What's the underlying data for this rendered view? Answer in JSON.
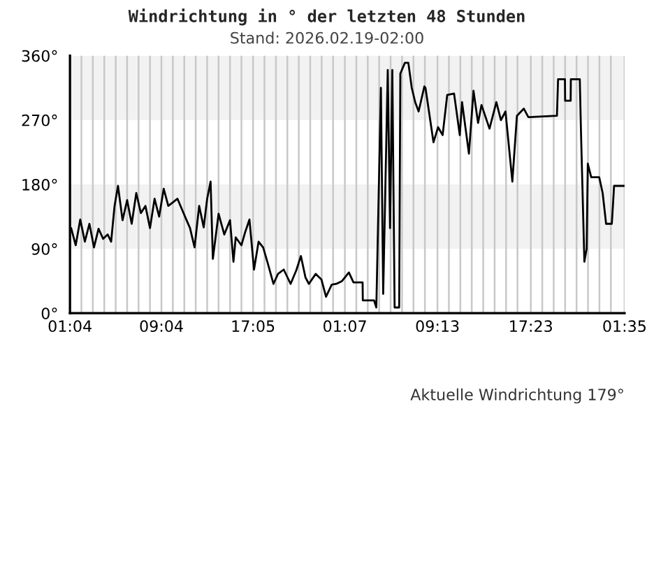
{
  "chart_data": {
    "type": "line",
    "title": "Windrichtung in ° der letzten 48 Stunden",
    "subtitle": "Stand: 2026.02.19-02:00",
    "annotations": [
      "Aktuelle Windrichtung 179°"
    ],
    "series": [
      {
        "color": "#000000",
        "x": [
          "2026-02-17T01:10",
          "2026-02-17T01:34",
          "2026-02-17T01:58",
          "2026-02-17T02:22",
          "2026-02-17T02:46",
          "2026-02-17T03:10",
          "2026-02-17T03:34",
          "2026-02-17T03:58",
          "2026-02-17T04:22",
          "2026-02-17T04:40",
          "2026-02-17T04:58",
          "2026-02-17T05:16",
          "2026-02-17T05:40",
          "2026-02-17T06:04",
          "2026-02-17T06:28",
          "2026-02-17T06:52",
          "2026-02-17T07:16",
          "2026-02-17T07:40",
          "2026-02-17T08:04",
          "2026-02-17T08:28",
          "2026-02-17T08:52",
          "2026-02-17T09:16",
          "2026-02-17T09:40",
          "2026-02-17T10:04",
          "2026-02-17T10:28",
          "2026-02-17T10:52",
          "2026-02-17T11:16",
          "2026-02-17T11:34",
          "2026-02-17T11:58",
          "2026-02-17T12:22",
          "2026-02-17T12:46",
          "2026-02-17T13:04",
          "2026-02-17T13:22",
          "2026-02-17T13:34",
          "2026-02-17T14:04",
          "2026-02-17T14:34",
          "2026-02-17T15:04",
          "2026-02-17T15:22",
          "2026-02-17T15:34",
          "2026-02-17T16:04",
          "2026-02-17T16:22",
          "2026-02-17T16:46",
          "2026-02-17T17:10",
          "2026-02-17T17:34",
          "2026-02-17T17:58",
          "2026-02-17T18:22",
          "2026-02-17T18:52",
          "2026-02-17T19:16",
          "2026-02-17T19:46",
          "2026-02-17T20:22",
          "2026-02-17T20:52",
          "2026-02-17T21:16",
          "2026-02-17T21:40",
          "2026-02-17T21:58",
          "2026-02-17T22:34",
          "2026-02-17T23:04",
          "2026-02-17T23:28",
          "2026-02-17T23:58",
          "2026-02-18T00:22",
          "2026-02-18T00:52",
          "2026-02-18T01:28",
          "2026-02-18T01:52",
          "2026-02-18T02:40",
          "2026-02-18T02:41",
          "2026-02-18T03:40",
          "2026-02-18T03:52",
          "2026-02-18T04:16",
          "2026-02-18T04:28",
          "2026-02-18T04:52",
          "2026-02-18T05:04",
          "2026-02-18T05:16",
          "2026-02-18T05:28",
          "2026-02-18T05:52",
          "2026-02-18T05:58",
          "2026-02-18T06:22",
          "2026-02-18T06:40",
          "2026-02-18T06:58",
          "2026-02-18T07:16",
          "2026-02-18T07:34",
          "2026-02-18T08:04",
          "2026-02-18T08:10",
          "2026-02-18T08:52",
          "2026-02-18T09:16",
          "2026-02-18T09:40",
          "2026-02-18T10:04",
          "2026-02-18T10:40",
          "2026-02-18T11:10",
          "2026-02-18T11:22",
          "2026-02-18T11:58",
          "2026-02-18T12:22",
          "2026-02-18T12:46",
          "2026-02-18T13:04",
          "2026-02-18T13:46",
          "2026-02-18T14:22",
          "2026-02-18T14:46",
          "2026-02-18T15:10",
          "2026-02-18T15:46",
          "2026-02-18T16:10",
          "2026-02-18T16:46",
          "2026-02-18T17:10",
          "2026-02-18T19:40",
          "2026-02-18T19:46",
          "2026-02-18T20:22",
          "2026-02-18T20:23",
          "2026-02-18T20:52",
          "2026-02-18T20:53",
          "2026-02-18T21:40",
          "2026-02-18T21:46",
          "2026-02-18T22:04",
          "2026-02-18T22:16",
          "2026-02-18T22:22",
          "2026-02-18T22:40",
          "2026-02-18T23:22",
          "2026-02-18T23:40",
          "2026-02-18T23:58",
          "2026-02-19T00:28",
          "2026-02-19T00:34",
          "2026-02-19T00:40",
          "2026-02-19T01:35"
        ],
        "values": [
          119,
          95,
          131,
          100,
          125,
          92,
          118,
          104,
          110,
          100,
          150,
          178,
          130,
          158,
          125,
          168,
          140,
          150,
          119,
          160,
          135,
          174,
          150,
          155,
          160,
          145,
          130,
          119,
          92,
          150,
          120,
          160,
          184,
          76,
          139,
          110,
          130,
          72,
          106,
          95,
          112,
          131,
          61,
          100,
          92,
          70,
          41,
          55,
          61,
          41,
          60,
          80,
          50,
          41,
          55,
          47,
          23,
          40,
          41,
          45,
          57,
          43,
          43,
          18,
          18,
          8,
          315,
          27,
          340,
          119,
          340,
          8,
          8,
          335,
          350,
          350,
          315,
          295,
          282,
          317,
          315,
          239,
          260,
          249,
          305,
          307,
          249,
          295,
          223,
          311,
          266,
          291,
          258,
          295,
          270,
          282,
          184,
          276,
          286,
          274,
          276,
          327,
          327,
          297,
          297,
          327,
          327,
          256,
          72,
          90,
          209,
          190,
          190,
          168,
          125,
          125,
          151,
          178,
          178
        ]
      }
    ],
    "xlim": [
      "2026-02-17T01:04",
      "2026-02-19T01:35"
    ],
    "xticks": [
      {
        "value": "2026-02-17T01:04",
        "label": "01:04"
      },
      {
        "value": "2026-02-17T02:04",
        "label": null
      },
      {
        "value": "2026-02-17T03:04",
        "label": null
      },
      {
        "value": "2026-02-17T04:04",
        "label": null
      },
      {
        "value": "2026-02-17T05:04",
        "label": null
      },
      {
        "value": "2026-02-17T06:04",
        "label": null
      },
      {
        "value": "2026-02-17T07:04",
        "label": null
      },
      {
        "value": "2026-02-17T08:04",
        "label": null
      },
      {
        "value": "2026-02-17T09:04",
        "label": "09:04"
      },
      {
        "value": "2026-02-17T10:04",
        "label": null
      },
      {
        "value": "2026-02-17T11:04",
        "label": null
      },
      {
        "value": "2026-02-17T12:04",
        "label": null
      },
      {
        "value": "2026-02-17T13:04",
        "label": null
      },
      {
        "value": "2026-02-17T14:04",
        "label": null
      },
      {
        "value": "2026-02-17T15:04",
        "label": null
      },
      {
        "value": "2026-02-17T16:04",
        "label": null
      },
      {
        "value": "2026-02-17T17:05",
        "label": "17:05"
      },
      {
        "value": "2026-02-17T18:05",
        "label": null
      },
      {
        "value": "2026-02-17T19:05",
        "label": null
      },
      {
        "value": "2026-02-17T20:05",
        "label": null
      },
      {
        "value": "2026-02-17T21:05",
        "label": null
      },
      {
        "value": "2026-02-17T22:05",
        "label": null
      },
      {
        "value": "2026-02-17T23:05",
        "label": null
      },
      {
        "value": "2026-02-18T00:05",
        "label": null
      },
      {
        "value": "2026-02-18T01:07",
        "label": "01:07"
      },
      {
        "value": "2026-02-18T02:07",
        "label": null
      },
      {
        "value": "2026-02-18T03:07",
        "label": null
      },
      {
        "value": "2026-02-18T04:07",
        "label": null
      },
      {
        "value": "2026-02-18T05:07",
        "label": null
      },
      {
        "value": "2026-02-18T06:07",
        "label": null
      },
      {
        "value": "2026-02-18T07:07",
        "label": null
      },
      {
        "value": "2026-02-18T08:07",
        "label": null
      },
      {
        "value": "2026-02-18T09:13",
        "label": "09:13"
      },
      {
        "value": "2026-02-18T10:13",
        "label": null
      },
      {
        "value": "2026-02-18T11:13",
        "label": null
      },
      {
        "value": "2026-02-18T12:13",
        "label": null
      },
      {
        "value": "2026-02-18T13:13",
        "label": null
      },
      {
        "value": "2026-02-18T14:13",
        "label": null
      },
      {
        "value": "2026-02-18T15:13",
        "label": null
      },
      {
        "value": "2026-02-18T16:13",
        "label": null
      },
      {
        "value": "2026-02-18T17:23",
        "label": "17:23"
      },
      {
        "value": "2026-02-18T18:23",
        "label": null
      },
      {
        "value": "2026-02-18T19:23",
        "label": null
      },
      {
        "value": "2026-02-18T20:23",
        "label": null
      },
      {
        "value": "2026-02-18T21:23",
        "label": null
      },
      {
        "value": "2026-02-18T22:23",
        "label": null
      },
      {
        "value": "2026-02-18T23:23",
        "label": null
      },
      {
        "value": "2026-02-19T00:23",
        "label": null
      },
      {
        "value": "2026-02-19T01:35",
        "label": "01:35"
      }
    ],
    "ylim": [
      0,
      360
    ],
    "yticks": [
      {
        "value": 0,
        "label": "0°"
      },
      {
        "value": 90,
        "label": "90°"
      },
      {
        "value": 180,
        "label": "180°"
      },
      {
        "value": 270,
        "label": "270°"
      },
      {
        "value": 360,
        "label": "360°"
      }
    ],
    "bands": [
      {
        "axis": "y",
        "from": 90,
        "to": 180,
        "color": "#f2f2f2"
      },
      {
        "axis": "y",
        "from": 270,
        "to": 360,
        "color": "#f2f2f2"
      }
    ],
    "grid": "x"
  }
}
